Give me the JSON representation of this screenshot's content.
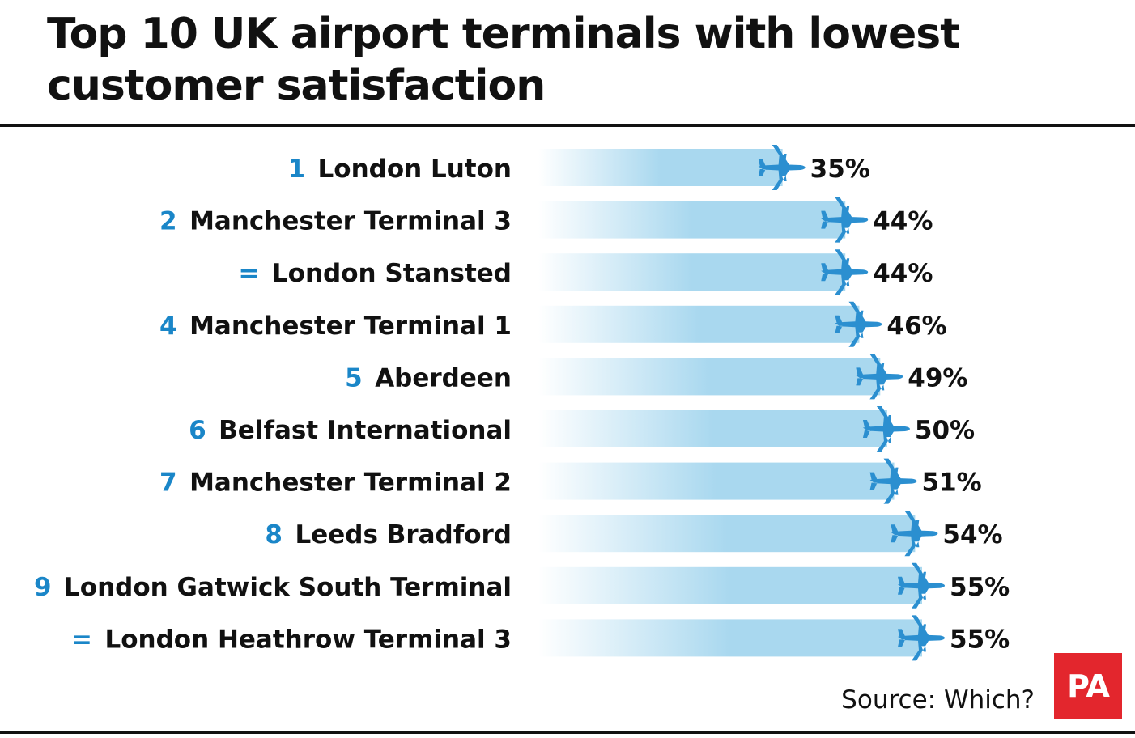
{
  "chart_data": {
    "type": "bar",
    "title": "Top 10 UK airport terminals with lowest customer satisfaction",
    "xlabel": "",
    "ylabel": "",
    "orientation": "horizontal",
    "value_suffix": "%",
    "xlim": [
      0,
      55
    ],
    "grid": false,
    "categories": [
      "London Luton",
      "Manchester Terminal 3",
      "London Stansted",
      "Manchester Terminal 1",
      "Aberdeen",
      "Belfast International",
      "Manchester Terminal 2",
      "Leeds Bradford",
      "London Gatwick South Terminal",
      "London Heathrow Terminal 3"
    ],
    "ranks": [
      "1",
      "2",
      "=",
      "4",
      "5",
      "6",
      "7",
      "8",
      "9",
      "="
    ],
    "values": [
      35,
      44,
      44,
      46,
      49,
      50,
      51,
      54,
      55,
      55
    ],
    "value_labels": [
      "35%",
      "44%",
      "44%",
      "46%",
      "49%",
      "50%",
      "51%",
      "54%",
      "55%",
      "55%"
    ],
    "marker_icon": "airplane-icon"
  },
  "source": "Source: Which?",
  "logo": "PA",
  "colors": {
    "bar": "#a9d8ef",
    "rank": "#1a86c8",
    "plane": "#2b8fd0",
    "text": "#111111",
    "logo_bg": "#e3262d"
  }
}
